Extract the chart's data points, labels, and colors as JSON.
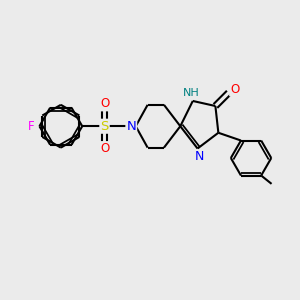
{
  "bg_color": "#ebebeb",
  "bond_color": "#000000",
  "bond_width": 1.5,
  "N_color": "#0000ff",
  "O_color": "#ff0000",
  "F_color": "#ff00ff",
  "S_color": "#cccc00",
  "NH_color": "#008080",
  "figsize": [
    3.0,
    3.0
  ],
  "dpi": 100,
  "xlim": [
    0,
    10
  ],
  "ylim": [
    0,
    10
  ]
}
